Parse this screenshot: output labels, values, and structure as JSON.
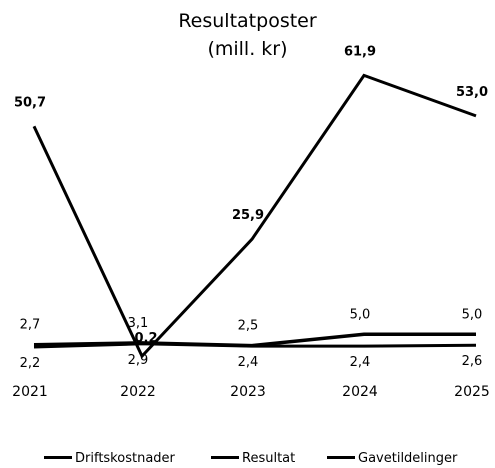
{
  "chart_data": {
    "type": "line",
    "title_lines": [
      "Resultatposter",
      "(mill. kr)"
    ],
    "categories": [
      "2021",
      "2022",
      "2023",
      "2024",
      "2025"
    ],
    "ylim": [
      0,
      70
    ],
    "grid": false,
    "legend_position": "bottom",
    "series": [
      {
        "name": "Driftskostnader",
        "values": [
          50.7,
          0.2,
          25.9,
          61.9,
          53.0
        ],
        "labels": [
          "50,7",
          "0,2",
          "25,9",
          "61,9",
          "53,0"
        ]
      },
      {
        "name": "Resultat",
        "values": [
          2.7,
          3.1,
          2.5,
          5.0,
          5.0
        ],
        "labels": [
          "2,7",
          "3,1",
          "2,5",
          "5,0",
          "5,0"
        ]
      },
      {
        "name": "Gavetildelinger",
        "values": [
          2.2,
          2.9,
          2.4,
          2.4,
          2.6
        ],
        "labels": [
          "2,2",
          "2,9",
          "2,4",
          "2,4",
          "2,6"
        ]
      }
    ],
    "colors": {
      "line": "#000000"
    }
  }
}
